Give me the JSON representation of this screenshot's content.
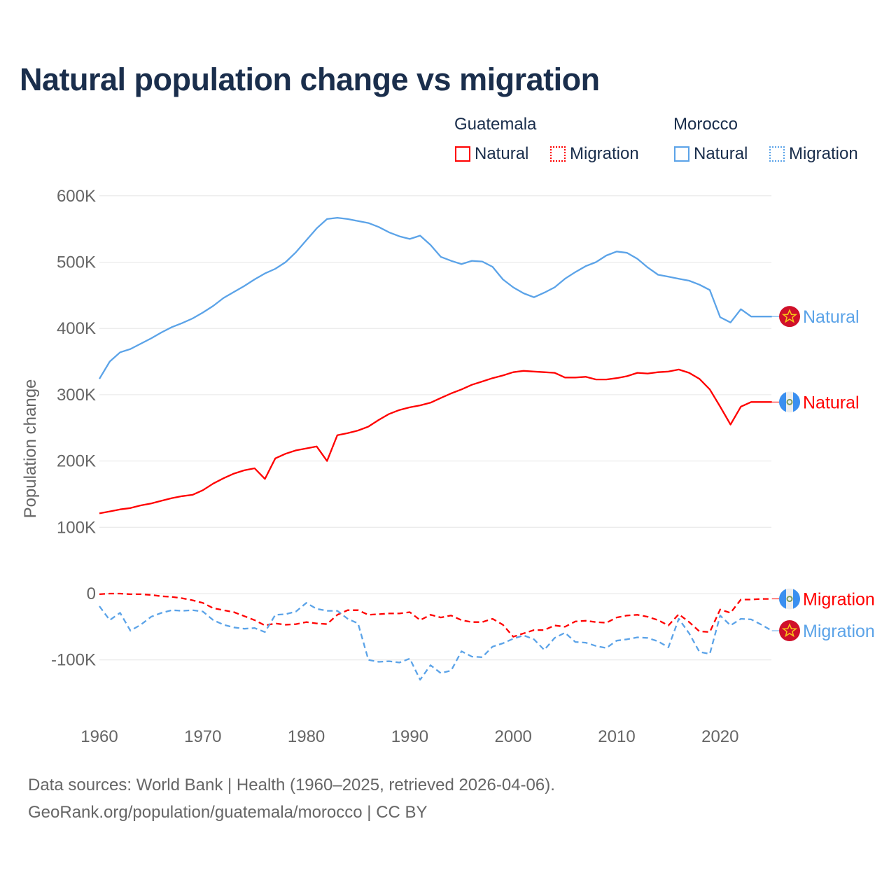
{
  "chart_data": {
    "type": "line",
    "title": "Natural population change vs migration",
    "ylabel": "Population change",
    "xlabel": "",
    "ylim": [
      -150,
      600
    ],
    "y_unit": "K",
    "xlim": [
      1960,
      2025
    ],
    "grid": true,
    "legend_placement": "top-right",
    "yticks": [
      "600K",
      "500K",
      "400K",
      "300K",
      "200K",
      "100K",
      "0",
      "-100K"
    ],
    "ytick_values": [
      600,
      500,
      400,
      300,
      200,
      100,
      0,
      -100
    ],
    "xticks": [
      "1960",
      "1970",
      "1980",
      "1990",
      "2000",
      "2010",
      "2020"
    ],
    "xtick_values": [
      1960,
      1970,
      1980,
      1990,
      2000,
      2010,
      2020
    ],
    "x_start": 1960,
    "legend": {
      "groups": [
        {
          "name": "Guatemala",
          "items": [
            "Natural",
            "Migration"
          ]
        },
        {
          "name": "Morocco",
          "items": [
            "Natural",
            "Migration"
          ]
        }
      ]
    },
    "series": [
      {
        "name": "Morocco Natural",
        "country": "Morocco",
        "label": "Natural",
        "color": "#5ba3e8",
        "dash": false,
        "values": [
          324,
          350,
          364,
          369,
          377,
          385,
          394,
          402,
          408,
          415,
          424,
          434,
          446,
          455,
          464,
          474,
          483,
          490,
          500,
          515,
          533,
          551,
          565,
          567,
          565,
          562,
          559,
          553,
          545,
          539,
          535,
          540,
          526,
          508,
          502,
          497,
          502,
          501,
          493,
          474,
          462,
          453,
          447,
          454,
          462,
          475,
          485,
          494,
          500,
          510,
          516,
          514,
          505,
          492,
          481,
          478,
          475,
          472,
          466,
          458,
          417,
          409,
          429,
          418,
          418,
          418
        ]
      },
      {
        "name": "Guatemala Natural",
        "country": "Guatemala",
        "label": "Natural",
        "color": "#ff0000",
        "dash": false,
        "values": [
          121,
          124,
          127,
          129,
          133,
          136,
          140,
          144,
          147,
          149,
          156,
          166,
          174,
          181,
          186,
          189,
          173,
          204,
          211,
          216,
          219,
          222,
          200,
          239,
          242,
          246,
          252,
          262,
          271,
          277,
          281,
          284,
          288,
          295,
          302,
          308,
          315,
          320,
          325,
          329,
          334,
          336,
          335,
          334,
          333,
          326,
          326,
          327,
          323,
          323,
          325,
          328,
          333,
          332,
          334,
          335,
          338,
          333,
          324,
          308,
          282,
          255,
          282,
          289,
          289,
          289
        ]
      },
      {
        "name": "Guatemala Migration",
        "country": "Guatemala",
        "label": "Migration",
        "color": "#ff0000",
        "dash": true,
        "values": [
          -1,
          0,
          0,
          -1,
          -1,
          -2,
          -4,
          -5,
          -7,
          -10,
          -14,
          -22,
          -25,
          -28,
          -34,
          -40,
          -48,
          -45,
          -47,
          -46,
          -43,
          -45,
          -46,
          -32,
          -25,
          -25,
          -32,
          -31,
          -30,
          -30,
          -28,
          -40,
          -32,
          -36,
          -33,
          -40,
          -43,
          -43,
          -38,
          -47,
          -65,
          -60,
          -55,
          -55,
          -48,
          -50,
          -42,
          -41,
          -43,
          -44,
          -36,
          -33,
          -32,
          -35,
          -40,
          -48,
          -31,
          -43,
          -57,
          -58,
          -24,
          -29,
          -9,
          -9,
          -8,
          -8
        ]
      },
      {
        "name": "Morocco Migration",
        "country": "Morocco",
        "label": "Migration",
        "color": "#5ba3e8",
        "dash": true,
        "values": [
          -19,
          -40,
          -29,
          -56,
          -47,
          -35,
          -29,
          -25,
          -26,
          -25,
          -27,
          -40,
          -47,
          -51,
          -53,
          -52,
          -58,
          -32,
          -31,
          -27,
          -14,
          -23,
          -26,
          -26,
          -38,
          -45,
          -100,
          -103,
          -102,
          -104,
          -98,
          -130,
          -108,
          -120,
          -116,
          -87,
          -95,
          -96,
          -80,
          -75,
          -68,
          -63,
          -69,
          -85,
          -67,
          -59,
          -73,
          -74,
          -79,
          -82,
          -71,
          -69,
          -66,
          -67,
          -72,
          -81,
          -38,
          -60,
          -88,
          -91,
          -33,
          -48,
          -38,
          -39,
          -47,
          -56
        ]
      }
    ]
  },
  "footer": {
    "line1": "Data sources: World Bank | Health (1960–2025, retrieved 2026-04-06).",
    "line2": "GeoRank.org/population/guatemala/morocco | CC BY"
  },
  "colors": {
    "guatemala": "#ff0000",
    "morocco": "#5ba3e8",
    "title": "#1a2e4c"
  }
}
